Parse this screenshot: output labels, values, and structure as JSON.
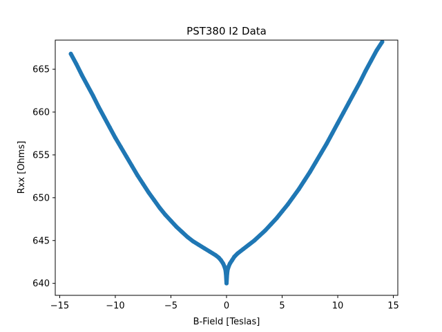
{
  "chart_data": {
    "type": "scatter",
    "title": "PST380 I2 Data",
    "xlabel": "B-Field [Teslas]",
    "ylabel": "Rxx [Ohms]",
    "xlim": [
      -15.4,
      15.4
    ],
    "ylim": [
      638.6,
      668.4
    ],
    "xticks": [
      -15,
      -10,
      -5,
      0,
      5,
      10,
      15
    ],
    "yticks": [
      640,
      645,
      650,
      655,
      660,
      665
    ],
    "grid": false,
    "legend": "none",
    "series": [
      {
        "color": "#1f77b4",
        "x": [
          -14,
          -13.5,
          -13,
          -12.5,
          -12,
          -11.5,
          -11,
          -10.5,
          -10,
          -9.5,
          -9,
          -8.5,
          -8,
          -7.5,
          -7,
          -6.5,
          -6,
          -5.5,
          -5,
          -4.5,
          -4,
          -3.5,
          -3,
          -2.5,
          -2,
          -1.5,
          -1,
          -0.7,
          -0.5,
          -0.3,
          -0.2,
          -0.1,
          -0.05,
          0,
          0.05,
          0.1,
          0.2,
          0.3,
          0.5,
          0.7,
          1,
          1.5,
          2,
          2.5,
          3,
          3.5,
          4,
          4.5,
          5,
          5.5,
          6,
          6.5,
          7,
          7.5,
          8,
          8.5,
          9,
          9.5,
          10,
          10.5,
          11,
          11.5,
          12,
          12.5,
          13,
          13.5,
          14
        ],
        "y": [
          666.8,
          665.6,
          664.3,
          663.1,
          661.9,
          660.6,
          659.4,
          658.2,
          657.0,
          655.9,
          654.8,
          653.7,
          652.6,
          651.6,
          650.6,
          649.7,
          648.8,
          648.0,
          647.3,
          646.6,
          646.0,
          645.4,
          644.9,
          644.5,
          644.1,
          643.7,
          643.3,
          643.0,
          642.7,
          642.3,
          642.0,
          641.6,
          641.1,
          640.0,
          641.1,
          641.6,
          642.0,
          642.3,
          642.7,
          643.1,
          643.5,
          644.0,
          644.5,
          645.0,
          645.6,
          646.2,
          646.9,
          647.6,
          648.4,
          649.2,
          650.1,
          651.0,
          652.0,
          653.0,
          654.1,
          655.2,
          656.3,
          657.5,
          658.7,
          659.9,
          661.1,
          662.3,
          663.5,
          664.8,
          666.0,
          667.2,
          668.2
        ]
      }
    ]
  }
}
